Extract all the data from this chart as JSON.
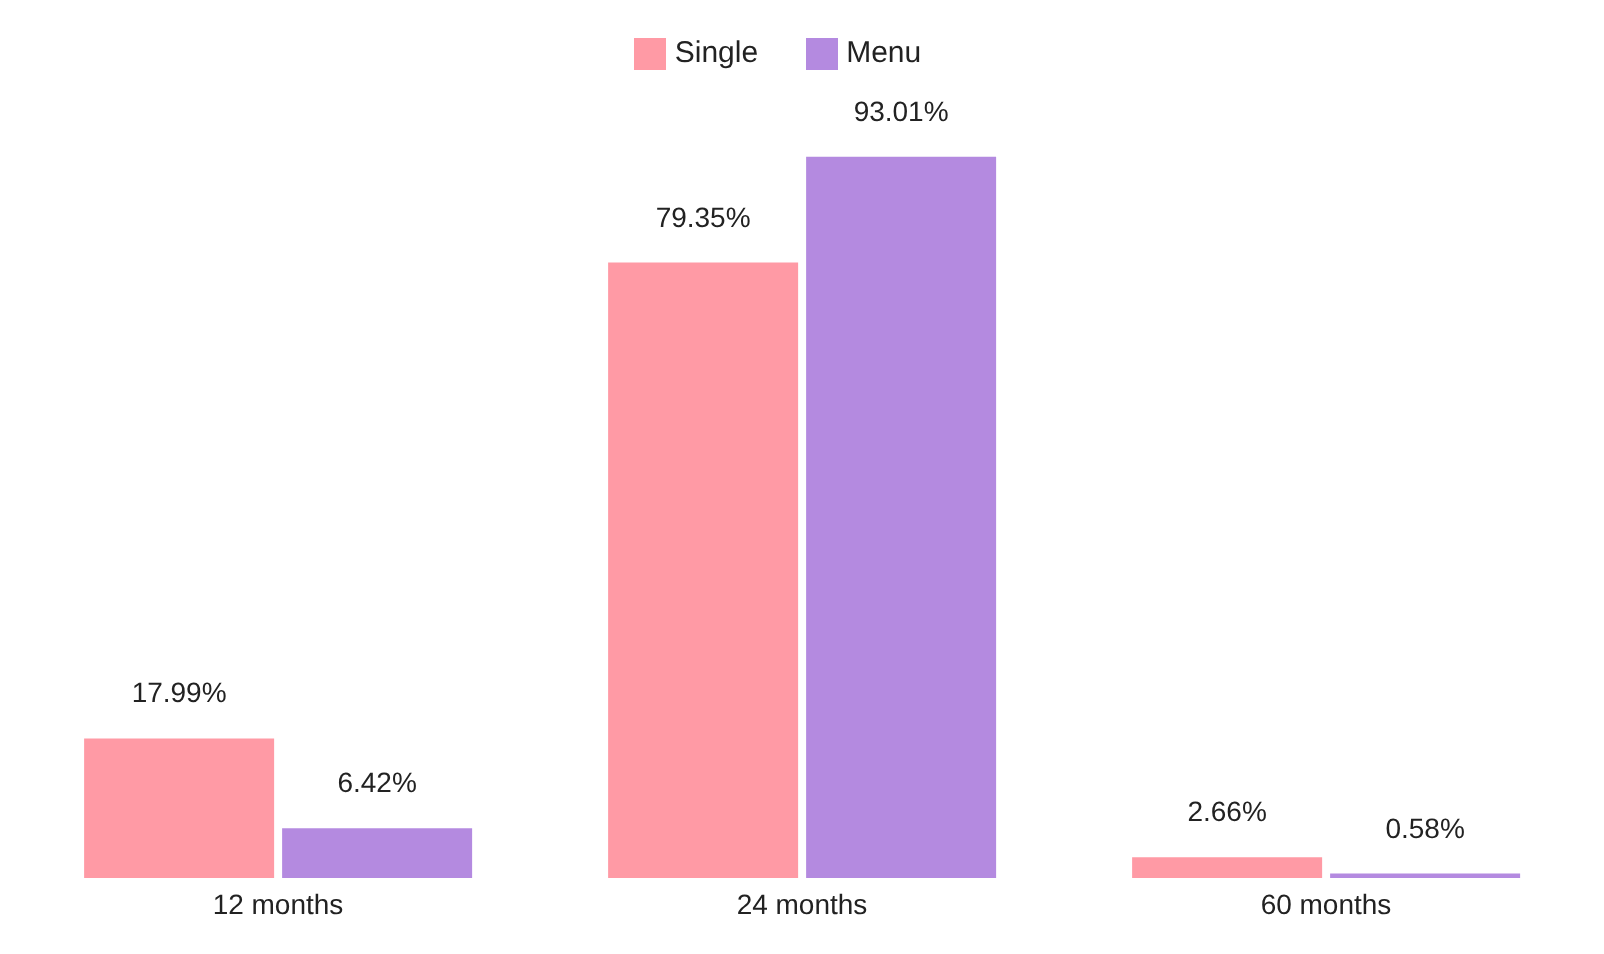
{
  "chart_data": {
    "type": "bar",
    "categories": [
      "12 months",
      "24 months",
      "60 months"
    ],
    "series": [
      {
        "name": "Single",
        "color": "#ff9aa5",
        "values": [
          17.99,
          79.35,
          2.66
        ],
        "value_labels": [
          "17.99%",
          "79.35%",
          "2.66%"
        ]
      },
      {
        "name": "Menu",
        "color": "#b48ae0",
        "values": [
          6.42,
          93.01,
          0.58
        ],
        "value_labels": [
          "6.42%",
          "93.01%",
          "0.58%"
        ]
      }
    ],
    "legend": "top",
    "grid": false
  }
}
